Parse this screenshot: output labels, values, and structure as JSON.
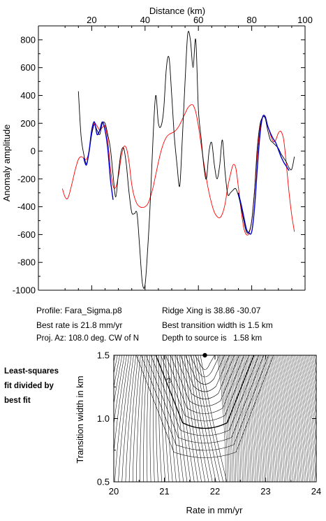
{
  "chart_data": [
    {
      "type": "line",
      "xlabel": "Distance (km)",
      "ylabel": "Anomaly amplitude",
      "xlim": [
        0,
        100
      ],
      "ylim": [
        -1000,
        900
      ],
      "x_ticks": [
        20,
        40,
        60,
        80,
        100
      ],
      "y_ticks": [
        800,
        600,
        400,
        200,
        0,
        -200,
        -400,
        -600,
        -800,
        -1000
      ],
      "x_axis_position": "top",
      "grid": false,
      "series": [
        {
          "color": "#000000",
          "x": [
            15,
            16,
            17,
            18,
            19,
            20,
            21,
            22,
            23,
            24,
            25,
            26,
            27,
            28,
            29,
            30,
            31,
            32,
            33,
            34,
            35,
            36,
            37,
            38,
            39,
            40,
            41,
            42,
            43,
            44,
            45,
            46,
            47,
            48,
            49,
            50,
            51,
            52,
            53,
            54,
            55,
            56,
            57,
            58,
            59,
            60,
            61,
            62,
            63,
            64,
            65,
            66,
            67,
            68,
            69,
            70,
            71,
            72,
            73,
            74,
            75,
            76,
            77,
            78,
            79,
            80,
            81,
            82,
            83,
            84,
            85,
            86,
            87,
            88,
            89,
            90,
            91,
            92,
            93,
            94,
            95,
            96
          ],
          "y": [
            430,
            110,
            -20,
            -90,
            -10,
            120,
            190,
            150,
            120,
            200,
            200,
            120,
            20,
            -170,
            -330,
            -160,
            -10,
            20,
            -100,
            -300,
            -440,
            -450,
            -450,
            -700,
            -950,
            -960,
            -700,
            -350,
            100,
            400,
            200,
            180,
            300,
            600,
            670,
            400,
            100,
            -100,
            -250,
            100,
            500,
            840,
            800,
            600,
            800,
            300,
            100,
            -100,
            -200,
            0,
            60,
            -100,
            -200,
            -100,
            80,
            -150,
            -310,
            -300,
            -280,
            -270,
            -320,
            -400,
            -500,
            -580,
            -580,
            -500,
            -300,
            0,
            180,
            240,
            240,
            150,
            80,
            60,
            40,
            20,
            -20,
            -50,
            -80,
            -120,
            -130,
            -40
          ]
        },
        {
          "color": "#0000cc",
          "x": [
            17,
            18,
            19,
            20,
            21,
            22,
            23,
            24,
            25,
            26,
            27,
            28
          ],
          "y": [
            -50,
            -100,
            0,
            150,
            210,
            120,
            150,
            210,
            150,
            20,
            -200,
            -350
          ]
        },
        {
          "color": "#0000cc",
          "x": [
            75,
            76,
            77,
            78,
            79,
            80,
            81,
            82,
            83,
            84,
            85,
            86,
            87,
            88,
            89,
            90,
            91,
            92,
            93,
            94
          ],
          "y": [
            -300,
            -380,
            -470,
            -560,
            -590,
            -580,
            -420,
            -150,
            100,
            240,
            250,
            180,
            130,
            90,
            60,
            10,
            -40,
            -80,
            -110,
            -140
          ]
        },
        {
          "color": "#ff0000",
          "x": [
            9,
            10,
            11,
            12,
            13,
            14,
            15,
            16,
            17,
            18,
            19,
            20,
            21,
            22,
            23,
            24,
            25,
            26,
            27,
            28,
            29,
            30,
            31,
            32,
            33,
            34,
            35,
            36,
            37,
            38,
            39,
            40,
            41,
            42,
            43,
            44,
            45,
            46,
            47,
            48,
            49,
            50,
            51,
            52,
            53,
            54,
            55,
            56,
            57,
            58,
            59,
            60,
            61,
            62,
            63,
            64,
            65,
            66,
            67,
            68,
            69,
            70,
            71,
            72,
            73,
            74,
            75,
            76,
            77,
            78,
            79,
            80,
            81,
            82,
            83,
            84,
            85,
            86,
            87,
            88,
            89,
            90,
            91,
            92,
            93,
            94,
            95,
            96
          ],
          "y": [
            -270,
            -330,
            -340,
            -280,
            -200,
            -120,
            -60,
            -40,
            -50,
            -60,
            0,
            140,
            200,
            180,
            150,
            170,
            180,
            80,
            -120,
            -250,
            -260,
            -180,
            -50,
            30,
            20,
            -80,
            -240,
            -330,
            -380,
            -400,
            -405,
            -400,
            -380,
            -330,
            -260,
            -170,
            -80,
            0,
            60,
            100,
            120,
            130,
            140,
            160,
            190,
            230,
            270,
            310,
            330,
            330,
            280,
            180,
            50,
            -80,
            -200,
            -300,
            -380,
            -440,
            -470,
            -480,
            -450,
            -380,
            -260,
            -170,
            -100,
            -120,
            -260,
            -420,
            -550,
            -600,
            -590,
            -500,
            -300,
            -50,
            150,
            240,
            240,
            180,
            120,
            70,
            80,
            130,
            140,
            80,
            -100,
            -300,
            -460,
            -580
          ]
        }
      ]
    },
    {
      "type": "contour",
      "xlabel": "Rate in mm/yr",
      "ylabel": "Transition width in km",
      "xlim": [
        20,
        24
      ],
      "ylim": [
        0.5,
        1.5
      ],
      "x_ticks": [
        20,
        21,
        22,
        23,
        24
      ],
      "y_ticks": [
        1.5,
        1.0,
        0.5
      ],
      "minimum_marker": {
        "x": 21.8,
        "y": 1.5
      },
      "contour_label": "2"
    }
  ],
  "chart1": {
    "x_tick_labels": [
      "20",
      "40",
      "60",
      "80",
      "100"
    ],
    "y_tick_labels": [
      "800",
      "600",
      "400",
      "200",
      "0",
      "-200",
      "-400",
      "-600",
      "-800",
      "-1000"
    ]
  },
  "chart2": {
    "x_tick_labels": [
      "20",
      "21",
      "22",
      "23",
      "24"
    ],
    "y_tick_labels": [
      "1.5",
      "1.0",
      "0.5"
    ]
  },
  "info": {
    "profile": "Profile: Fara_Sigma.p8",
    "ridge": "Ridge Xing is 38.86 -30.07",
    "best_rate": "Best rate is 21.8 mm/yr",
    "best_width": "Best transition width is 1.5 km",
    "azimuth": "Proj. Az: 108.0 deg. CW of N",
    "depth": "Depth to source is   1.58 km"
  },
  "side_label": {
    "line1": "Least-squares",
    "line2": "fit divided by",
    "line3": "best fit"
  },
  "colors": {
    "data": "#000000",
    "fit": "#0000cc",
    "model": "#ff0000"
  }
}
